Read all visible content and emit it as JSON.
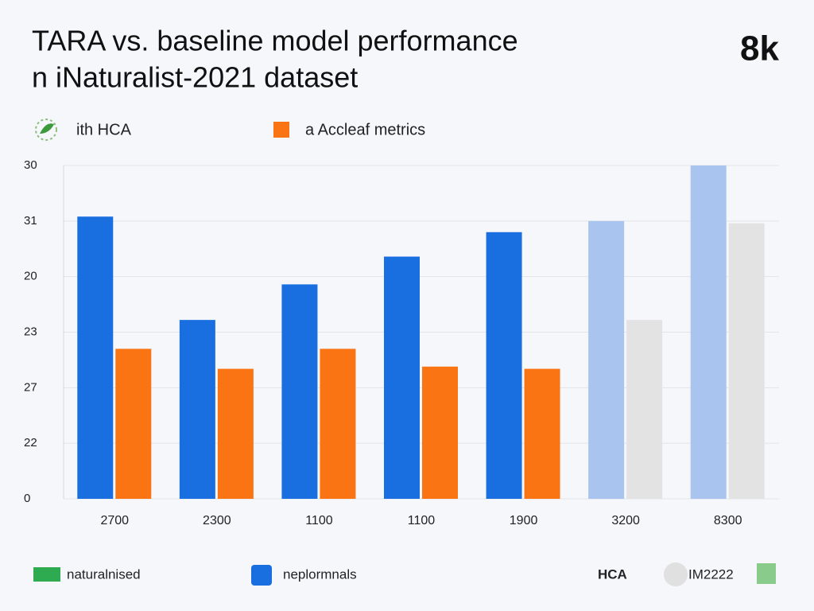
{
  "chart_data": {
    "type": "bar",
    "title": "TARA vs. baseline model performance",
    "subtitle": "n iNaturalist-2021 dataset",
    "badge": "8k",
    "categories": [
      "2700",
      "2300",
      "1100",
      "1100",
      "1900",
      "3200",
      "8300"
    ],
    "series": [
      {
        "name": "ith HCA",
        "color": "#1a6fe0",
        "colors": [
          "#1a6fe0",
          "#1a6fe0",
          "#1a6fe0",
          "#1a6fe0",
          "#1a6fe0",
          "#a9c4ee",
          "#a9c4ee"
        ],
        "values": [
          25.4,
          16.1,
          19.3,
          21.8,
          24.0,
          25.0,
          30.0
        ]
      },
      {
        "name": "a Accleaf metrics",
        "color": "#fa7414",
        "colors": [
          "#fa7414",
          "#fa7414",
          "#fa7414",
          "#fa7414",
          "#fa7414",
          "#e3e3e3",
          "#e3e3e3"
        ],
        "values": [
          13.5,
          11.7,
          13.5,
          11.9,
          11.7,
          16.1,
          24.8
        ]
      }
    ],
    "ylim": [
      0,
      30
    ],
    "yticks": [
      0,
      {
        "value": 5,
        "label": "22"
      },
      {
        "value": 10,
        "label": "27"
      },
      {
        "value": 15,
        "label": "23"
      },
      20,
      {
        "value": 25,
        "label": "31"
      },
      30
    ],
    "grid": true
  },
  "footer": {
    "items": [
      "naturalnised",
      "neplormnals",
      "HCA",
      "IM2222"
    ]
  }
}
